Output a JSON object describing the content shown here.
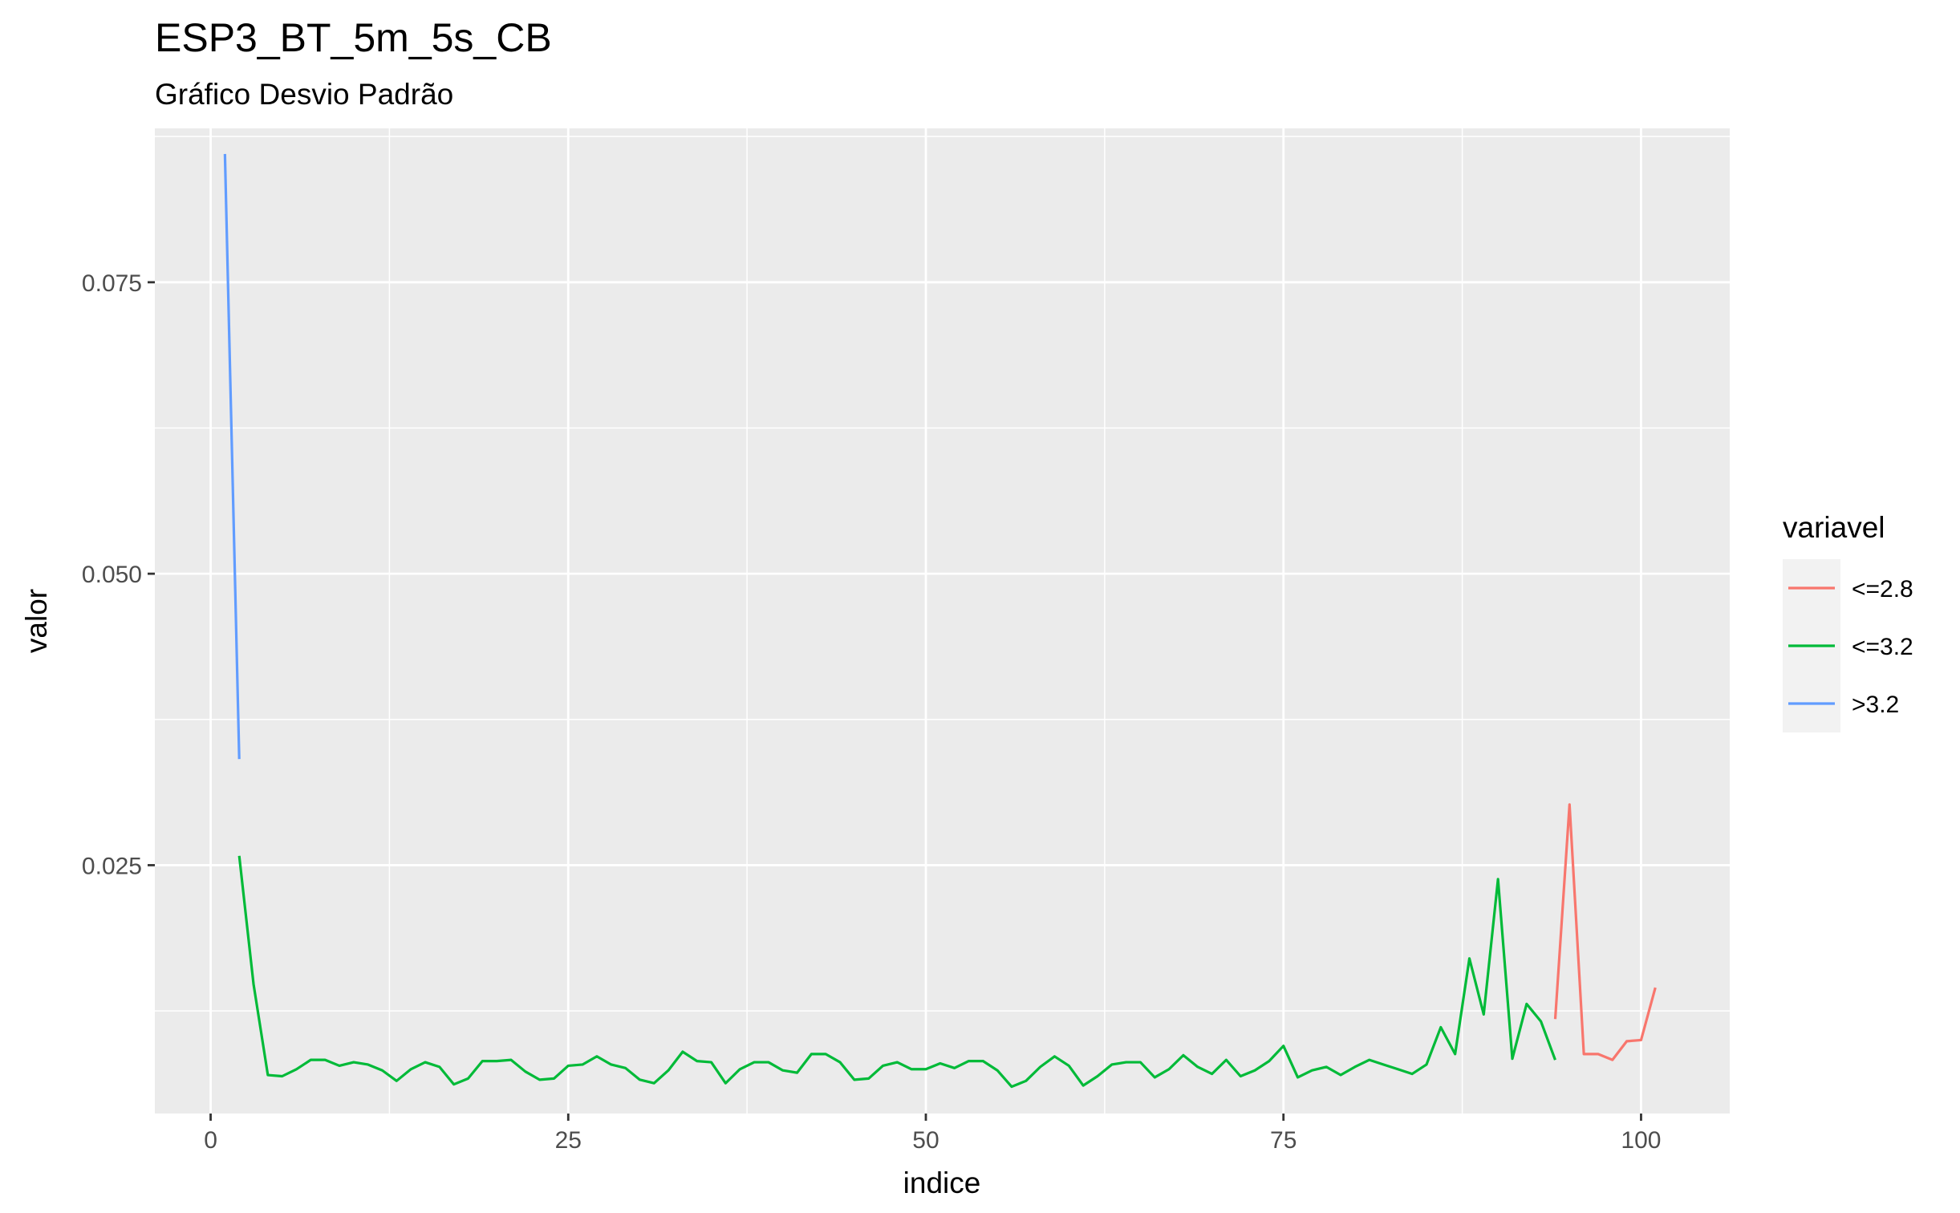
{
  "chart_data": {
    "type": "line",
    "title": "ESP3_BT_5m_5s_CB",
    "subtitle": "Gráfico Desvio Padrão",
    "xlabel": "indice",
    "ylabel": "valor",
    "xlim": [
      -3.9,
      106.2
    ],
    "ylim": [
      0.0037,
      0.0882
    ],
    "x_ticks": [
      0,
      25,
      50,
      75,
      100
    ],
    "x_tick_labels": [
      "0",
      "25",
      "50",
      "75",
      "100"
    ],
    "y_ticks": [
      0.025,
      0.05,
      0.075
    ],
    "y_tick_labels": [
      "0.025",
      "0.050",
      "0.075"
    ],
    "grid": true,
    "legend": {
      "title": "variavel",
      "position": "right"
    },
    "series": [
      {
        "name": "<=2.8",
        "color": "#F8766D",
        "x": [
          94,
          95,
          96,
          97,
          98,
          99,
          100,
          101
        ],
        "y": [
          0.0118,
          0.0302,
          0.0088,
          0.0088,
          0.0083,
          0.0099,
          0.01,
          0.0145
        ]
      },
      {
        "name": "<=3.2",
        "color": "#00BA38",
        "x": [
          2,
          3,
          4,
          5,
          6,
          7,
          8,
          9,
          10,
          11,
          12,
          13,
          14,
          15,
          16,
          17,
          18,
          19,
          20,
          21,
          22,
          23,
          24,
          25,
          26,
          27,
          28,
          29,
          30,
          31,
          32,
          33,
          34,
          35,
          36,
          37,
          38,
          39,
          40,
          41,
          42,
          43,
          44,
          45,
          46,
          47,
          48,
          49,
          50,
          51,
          52,
          53,
          54,
          55,
          56,
          57,
          58,
          59,
          60,
          61,
          62,
          63,
          64,
          65,
          66,
          67,
          68,
          69,
          70,
          71,
          72,
          73,
          74,
          75,
          76,
          77,
          78,
          79,
          80,
          81,
          82,
          83,
          84,
          85,
          86,
          87,
          88,
          89,
          90,
          91,
          92,
          93,
          94
        ],
        "y": [
          0.0258,
          0.0148,
          0.007,
          0.0069,
          0.0075,
          0.0083,
          0.0083,
          0.0078,
          0.0081,
          0.0079,
          0.0074,
          0.0065,
          0.0075,
          0.0081,
          0.0077,
          0.0062,
          0.0067,
          0.0082,
          0.0082,
          0.0083,
          0.0073,
          0.0066,
          0.0067,
          0.0078,
          0.0079,
          0.0086,
          0.0079,
          0.0076,
          0.0066,
          0.0063,
          0.0074,
          0.009,
          0.0082,
          0.0081,
          0.0063,
          0.0075,
          0.0081,
          0.0081,
          0.0074,
          0.0072,
          0.0088,
          0.0088,
          0.0081,
          0.0066,
          0.0067,
          0.0078,
          0.0081,
          0.0075,
          0.0075,
          0.008,
          0.0076,
          0.0082,
          0.0082,
          0.0074,
          0.006,
          0.0065,
          0.0077,
          0.0086,
          0.0078,
          0.0061,
          0.0069,
          0.0079,
          0.0081,
          0.0081,
          0.0068,
          0.0075,
          0.0087,
          0.0077,
          0.0071,
          0.0083,
          0.0069,
          0.0074,
          0.0082,
          0.0095,
          0.0068,
          0.0074,
          0.0077,
          0.007,
          0.0077,
          0.0083,
          0.0079,
          0.0075,
          0.0071,
          0.0079,
          0.0111,
          0.0088,
          0.017,
          0.0122,
          0.0238,
          0.0084,
          0.0131,
          0.0116,
          0.0083
        ]
      },
      {
        "name": ">3.2",
        "color": "#619CFF",
        "x": [
          1,
          2
        ],
        "y": [
          0.086,
          0.0341
        ]
      }
    ]
  }
}
